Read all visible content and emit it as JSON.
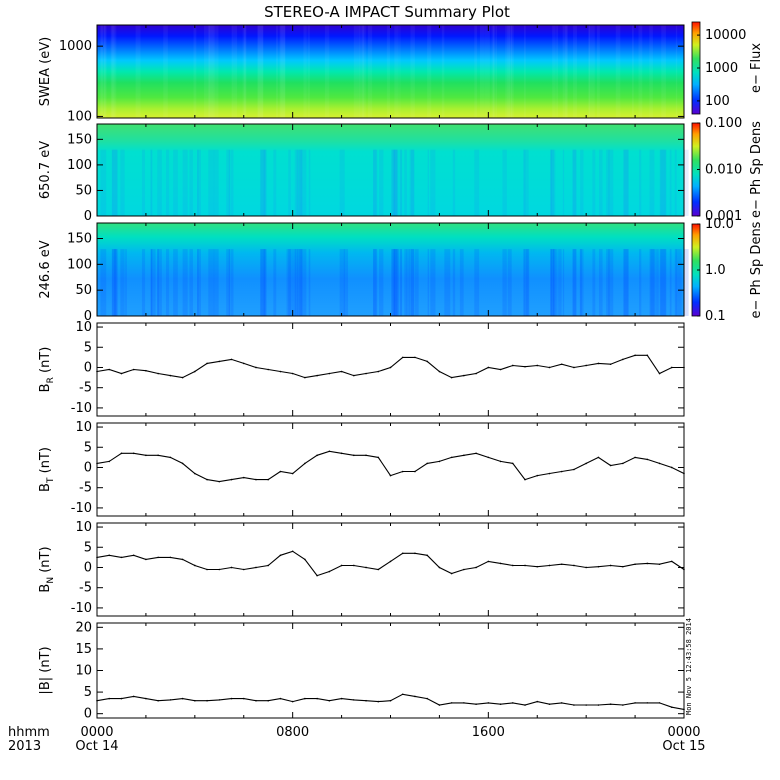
{
  "title": "STEREO-A IMPACT Summary Plot",
  "footer": {
    "hhmm": "hhmm",
    "year": "2013"
  },
  "timestamp": "Mon Nov  5 12:43:58 2014",
  "x_ticks": [
    {
      "hour": 0,
      "time": "0000",
      "date": "Oct 14"
    },
    {
      "hour": 8,
      "time": "0800",
      "date": ""
    },
    {
      "hour": 16,
      "time": "1600",
      "date": ""
    },
    {
      "hour": 24,
      "time": "0000",
      "date": "Oct 15"
    }
  ],
  "chart_data": [
    {
      "type": "heatmap",
      "id": "swea",
      "ylabel": "SWEA (eV)",
      "yscale": "log",
      "ylim": [
        95,
        2000
      ],
      "yticks": [
        "1000",
        "100"
      ],
      "ytick_values": [
        1000,
        100
      ],
      "colorbar": {
        "label": "e− Flux",
        "scale": "log",
        "range": [
          40,
          25000
        ],
        "ticks": [
          "10000",
          "1000",
          "100"
        ],
        "tick_values": [
          10000,
          1000,
          100
        ]
      }
    },
    {
      "type": "heatmap",
      "id": "pad650",
      "ylabel": "650.7 eV",
      "ylim": [
        0,
        180
      ],
      "yticks": [
        "150",
        "100",
        "50",
        "0"
      ],
      "ytick_values": [
        150,
        100,
        50,
        0
      ],
      "colorbar": {
        "label": "e− Ph Sp Dens",
        "scale": "log",
        "range": [
          0.001,
          0.1
        ],
        "ticks": [
          "0.100",
          "0.010",
          "0.001"
        ],
        "tick_values": [
          0.1,
          0.01,
          0.001
        ]
      }
    },
    {
      "type": "heatmap",
      "id": "pad246",
      "ylabel": "246.6 eV",
      "ylim": [
        0,
        180
      ],
      "yticks": [
        "150",
        "100",
        "50",
        "0"
      ],
      "ytick_values": [
        150,
        100,
        50,
        0
      ],
      "colorbar": {
        "label": "e− Ph Sp Dens",
        "scale": "log",
        "range": [
          0.1,
          10
        ],
        "ticks": [
          "10.0",
          "1.0",
          "0.1"
        ],
        "tick_values": [
          10,
          1,
          0.1
        ]
      }
    },
    {
      "type": "line",
      "id": "br",
      "ylabel": "B",
      "ysub": "R",
      "yunit": "(nT)",
      "ylim": [
        -12,
        11
      ],
      "yticks": [
        "10",
        "5",
        "0",
        "-5",
        "-10"
      ],
      "ytick_values": [
        10,
        5,
        0,
        -5,
        -10
      ],
      "x": [
        0,
        0.5,
        1,
        1.5,
        2,
        2.5,
        3,
        3.5,
        4,
        4.5,
        5,
        5.5,
        6,
        6.5,
        7,
        7.5,
        8,
        8.5,
        9,
        9.5,
        10,
        10.5,
        11,
        11.5,
        12,
        12.5,
        13,
        13.5,
        14,
        14.5,
        15,
        15.5,
        16,
        16.5,
        17,
        17.5,
        18,
        18.5,
        19,
        19.5,
        20,
        20.5,
        21,
        21.5,
        22,
        22.5,
        23,
        23.5,
        24
      ],
      "y": [
        -1,
        -0.5,
        -1.5,
        -0.5,
        -0.8,
        -1.5,
        -2,
        -2.5,
        -1,
        1,
        1.5,
        2,
        1,
        0,
        -0.5,
        -1,
        -1.5,
        -2.5,
        -2,
        -1.5,
        -1,
        -2,
        -1.5,
        -1,
        0,
        2.5,
        2.5,
        1.5,
        -1,
        -2.5,
        -2,
        -1.5,
        0,
        -0.5,
        0.5,
        0.2,
        0.5,
        0,
        0.8,
        0,
        0.5,
        1,
        0.8,
        2,
        3,
        3,
        -1.5,
        0,
        0
      ]
    },
    {
      "type": "line",
      "id": "bt",
      "ylabel": "B",
      "ysub": "T",
      "yunit": "(nT)",
      "ylim": [
        -12,
        11
      ],
      "yticks": [
        "10",
        "5",
        "0",
        "-5",
        "-10"
      ],
      "ytick_values": [
        10,
        5,
        0,
        -5,
        -10
      ],
      "x": [
        0,
        0.5,
        1,
        1.5,
        2,
        2.5,
        3,
        3.5,
        4,
        4.5,
        5,
        5.5,
        6,
        6.5,
        7,
        7.5,
        8,
        8.5,
        9,
        9.5,
        10,
        10.5,
        11,
        11.5,
        12,
        12.5,
        13,
        13.5,
        14,
        14.5,
        15,
        15.5,
        16,
        16.5,
        17,
        17.5,
        18,
        18.5,
        19,
        19.5,
        20,
        20.5,
        21,
        21.5,
        22,
        22.5,
        23,
        23.5,
        24
      ],
      "y": [
        1,
        1.5,
        3.5,
        3.5,
        3,
        3,
        2.5,
        1,
        -1.5,
        -3,
        -3.5,
        -3,
        -2.5,
        -3,
        -3,
        -1,
        -1.5,
        1,
        3,
        4,
        3.5,
        3,
        3,
        2.5,
        -2,
        -1,
        -1,
        1,
        1.5,
        2.5,
        3,
        3.5,
        2.5,
        1.5,
        1,
        -3,
        -2,
        -1.5,
        -1,
        -0.5,
        1,
        2.5,
        0.5,
        1,
        2.5,
        2,
        1,
        0,
        -1.5
      ]
    },
    {
      "type": "line",
      "id": "bn",
      "ylabel": "B",
      "ysub": "N",
      "yunit": "(nT)",
      "ylim": [
        -12,
        11
      ],
      "yticks": [
        "10",
        "5",
        "0",
        "-5",
        "-10"
      ],
      "ytick_values": [
        10,
        5,
        0,
        -5,
        -10
      ],
      "x": [
        0,
        0.5,
        1,
        1.5,
        2,
        2.5,
        3,
        3.5,
        4,
        4.5,
        5,
        5.5,
        6,
        6.5,
        7,
        7.5,
        8,
        8.5,
        9,
        9.5,
        10,
        10.5,
        11,
        11.5,
        12,
        12.5,
        13,
        13.5,
        14,
        14.5,
        15,
        15.5,
        16,
        16.5,
        17,
        17.5,
        18,
        18.5,
        19,
        19.5,
        20,
        20.5,
        21,
        21.5,
        22,
        22.5,
        23,
        23.5,
        24
      ],
      "y": [
        2.5,
        3,
        2.5,
        3,
        2,
        2.5,
        2.5,
        2,
        0.5,
        -0.5,
        -0.5,
        0,
        -0.5,
        0,
        0.5,
        3,
        4,
        2,
        -2,
        -1,
        0.5,
        0.5,
        0,
        -0.5,
        1.5,
        3.5,
        3.5,
        3,
        0,
        -1.5,
        -0.5,
        0,
        1.5,
        1,
        0.5,
        0.5,
        0.2,
        0.5,
        0.8,
        0.5,
        0,
        0.2,
        0.5,
        0.2,
        0.8,
        1,
        0.8,
        1.5,
        -0.5
      ]
    },
    {
      "type": "line",
      "id": "bmag",
      "ylabel": "|B|",
      "yunit": "(nT)",
      "ylim": [
        -1,
        21
      ],
      "yticks": [
        "20",
        "15",
        "10",
        "5",
        "0"
      ],
      "ytick_values": [
        20,
        15,
        10,
        5,
        0
      ],
      "x": [
        0,
        0.5,
        1,
        1.5,
        2,
        2.5,
        3,
        3.5,
        4,
        4.5,
        5,
        5.5,
        6,
        6.5,
        7,
        7.5,
        8,
        8.5,
        9,
        9.5,
        10,
        10.5,
        11,
        11.5,
        12,
        12.5,
        13,
        13.5,
        14,
        14.5,
        15,
        15.5,
        16,
        16.5,
        17,
        17.5,
        18,
        18.5,
        19,
        19.5,
        20,
        20.5,
        21,
        21.5,
        22,
        22.5,
        23,
        23.5,
        24
      ],
      "y": [
        3,
        3.5,
        3.5,
        4,
        3.5,
        3,
        3.2,
        3.5,
        3,
        3,
        3.2,
        3.5,
        3.5,
        3,
        3,
        3.5,
        2.8,
        3.5,
        3.5,
        3,
        3.5,
        3.2,
        3,
        2.8,
        3,
        4.5,
        4,
        3.5,
        2,
        2.5,
        2.5,
        2.2,
        2.5,
        2.2,
        2.5,
        2,
        2.8,
        2.2,
        2.5,
        2,
        2,
        2,
        2.2,
        2,
        2.5,
        2.5,
        2.5,
        1.5,
        1
      ]
    }
  ]
}
